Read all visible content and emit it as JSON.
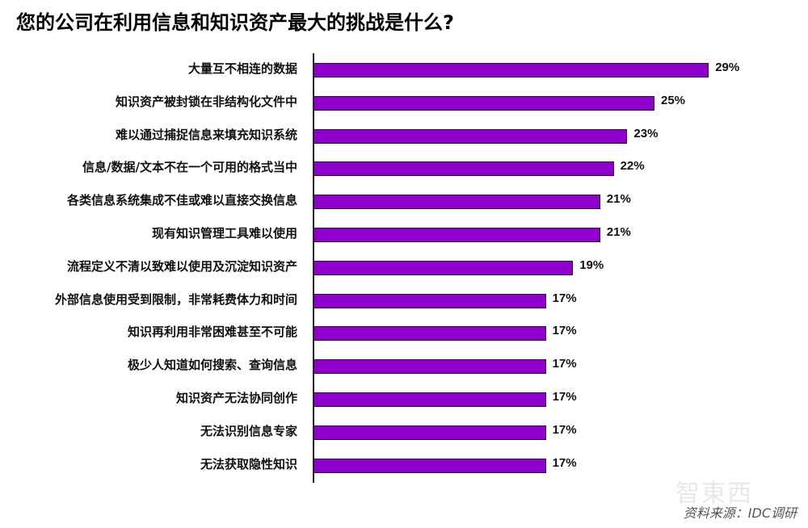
{
  "title": "您的公司在利用信息和知识资产最大的挑战是什么?",
  "source": "资料来源：IDC调研",
  "watermark": "智東西",
  "colors": {
    "bar": "#9000cc",
    "bar_border": "#2a0a3a",
    "text": "#111111"
  },
  "chart_data": {
    "type": "bar",
    "orientation": "horizontal",
    "title": "您的公司在利用信息和知识资产最大的挑战是什么?",
    "xlabel": "",
    "ylabel": "",
    "grid": false,
    "legend": null,
    "categories": [
      "大量互不相连的数据",
      "知识资产被封锁在非结构化文件中",
      "难以通过捕捉信息来填充知识系统",
      "信息/数据/文本不在一个可用的格式当中",
      "各类信息系统集成不佳或难以直接交换信息",
      "现有知识管理工具难以使用",
      "流程定义不清以致难以使用及沉淀知识资产",
      "外部信息使用受到限制，非常耗费体力和时间",
      "知识再利用非常困难甚至不可能",
      "极少人知道如何搜索、查询信息",
      "知识资产无法协同创作",
      "无法识别信息专家",
      "无法获取隐性知识"
    ],
    "values": [
      29,
      25,
      23,
      22,
      21,
      21,
      19,
      17,
      17,
      17,
      17,
      17,
      17
    ],
    "value_labels": [
      "29%",
      "25%",
      "23%",
      "22%",
      "21%",
      "21%",
      "19%",
      "17%",
      "17%",
      "17%",
      "17%",
      "17%",
      "17%"
    ],
    "unit": "%",
    "source": "资料来源：IDC调研"
  }
}
